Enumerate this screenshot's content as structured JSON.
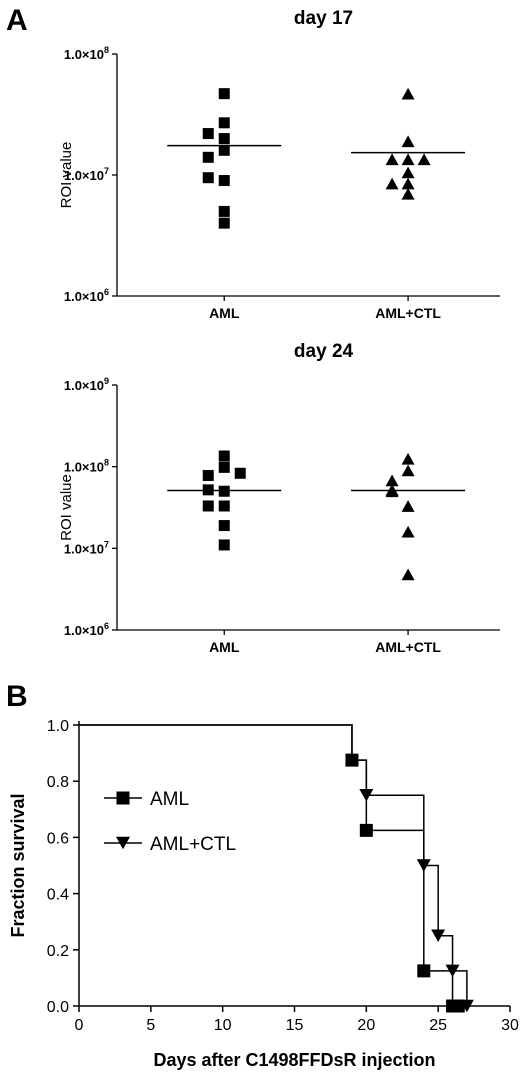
{
  "panels": {
    "a_letter": "A",
    "b_letter": "B"
  },
  "chart_data": [
    {
      "type": "scatter",
      "title": "day 17",
      "xlabel": "",
      "ylabel": "ROI value",
      "y_scale": "log",
      "ylim": [
        1000000,
        100000000
      ],
      "y_ticks": [
        {
          "mant": "1.0×10",
          "exp": "6"
        },
        {
          "mant": "1.0×10",
          "exp": "7"
        },
        {
          "mant": "1.0×10",
          "exp": "8"
        }
      ],
      "categories": [
        "AML",
        "AML+CTL"
      ],
      "series": [
        {
          "marker": "square",
          "values": [
            47000000,
            27000000,
            20000000,
            22000000,
            16000000,
            14000000,
            9000000,
            9500000,
            5000000,
            4000000
          ],
          "mean": 17500000
        },
        {
          "marker": "triangle",
          "values": [
            47000000,
            19000000,
            13500000,
            13500000,
            13500000,
            10500000,
            8500000,
            8500000,
            7000000
          ],
          "mean": 15300000
        }
      ],
      "grid": false
    },
    {
      "type": "scatter",
      "title": "day 24",
      "xlabel": "",
      "ylabel": "ROI value",
      "y_scale": "log",
      "ylim": [
        1000000,
        1000000000
      ],
      "y_ticks": [
        {
          "mant": "1.0×10",
          "exp": "6"
        },
        {
          "mant": "1.0×10",
          "exp": "7"
        },
        {
          "mant": "1.0×10",
          "exp": "8"
        },
        {
          "mant": "1.0×10",
          "exp": "9"
        }
      ],
      "categories": [
        "AML",
        "AML+CTL"
      ],
      "series": [
        {
          "marker": "square",
          "values": [
            135000000,
            98000000,
            78000000,
            83000000,
            50000000,
            52000000,
            33000000,
            33000000,
            19000000,
            11000000
          ],
          "mean": 51000000
        },
        {
          "marker": "triangle",
          "values": [
            125000000,
            90000000,
            68000000,
            52000000,
            50000000,
            33000000,
            16000000,
            4800000
          ],
          "mean": 51000000
        }
      ],
      "grid": false
    },
    {
      "type": "line",
      "subtype": "kaplan-meier step",
      "xlabel": "Days after C1498FFDsR injection",
      "ylabel": "Fraction survival",
      "xlim": [
        0,
        30
      ],
      "ylim": [
        0,
        1.0
      ],
      "x_ticks": [
        "0",
        "5",
        "10",
        "15",
        "20",
        "25",
        "30"
      ],
      "y_ticks": [
        "0.0",
        "0.2",
        "0.4",
        "0.6",
        "0.8",
        "1.0"
      ],
      "legend_position": "left",
      "series": [
        {
          "name": "AML",
          "marker": "square",
          "steps": [
            [
              0,
              1.0
            ],
            [
              19,
              0.875
            ],
            [
              20,
              0.625
            ],
            [
              24,
              0.125
            ],
            [
              26,
              0.0
            ]
          ],
          "end_x": 26.5,
          "markers": [
            [
              19,
              0.875
            ],
            [
              20,
              0.625
            ],
            [
              24,
              0.125
            ],
            [
              26,
              0.0
            ],
            [
              26.4,
              0.0
            ]
          ]
        },
        {
          "name": "AML+CTL",
          "marker": "triangle-down",
          "steps": [
            [
              0,
              1.0
            ],
            [
              19,
              0.875
            ],
            [
              20,
              0.75
            ],
            [
              24,
              0.5
            ],
            [
              25,
              0.25
            ],
            [
              26,
              0.125
            ],
            [
              27,
              0.0
            ]
          ],
          "end_x": 27,
          "markers": [
            [
              20,
              0.75
            ],
            [
              24,
              0.5
            ],
            [
              25,
              0.25
            ],
            [
              26,
              0.125
            ],
            [
              27,
              0.0
            ]
          ]
        }
      ],
      "grid": false
    }
  ]
}
